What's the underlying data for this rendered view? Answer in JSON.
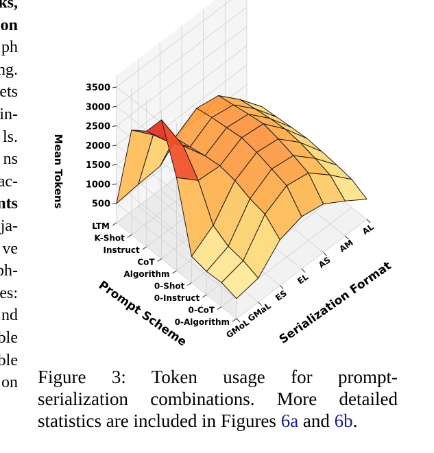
{
  "left_column_fragments": [
    {
      "text": "ks,",
      "bold": true
    },
    {
      "text": "on",
      "bold": true
    },
    {
      "text": "ph",
      "bold": false
    },
    {
      "text": "ng.",
      "bold": false
    },
    {
      "text": "ets",
      "bold": false
    },
    {
      "text": "in-",
      "bold": false
    },
    {
      "text": "ls.",
      "bold": false
    },
    {
      "text": "ns",
      "bold": false
    },
    {
      "text": "ac-",
      "bold": false
    },
    {
      "text": "nts",
      "bold": true
    },
    {
      "text": "ja-",
      "bold": false
    },
    {
      "text": "ve",
      "bold": false
    },
    {
      "text": "ph-",
      "bold": false
    },
    {
      "text": "es:",
      "bold": false
    },
    {
      "text": "nd",
      "bold": false
    },
    {
      "text": "ble",
      "bold": false
    },
    {
      "text": "ble",
      "bold": false
    },
    {
      "text": "on",
      "bold": false
    }
  ],
  "caption": {
    "line1": "Figure 3:  Token usage for prompt-",
    "line2": "serialization combinations. More detailed",
    "line3_pre": "statistics are included in Figures ",
    "ref1": "6a",
    "mid": " and ",
    "ref2": "6b",
    "end": "."
  },
  "chart_data": {
    "type": "surface3d",
    "zlabel": "Mean Tokens",
    "xlabel": "Serialization Format",
    "ylabel": "Prompt Scheme",
    "z_ticks": [
      "500",
      "1000",
      "1500",
      "2000",
      "2500",
      "3000",
      "3500"
    ],
    "zlim": [
      0,
      3800
    ],
    "serialization_formats": [
      "GMoL",
      "GMaL",
      "ES",
      "EL",
      "AS",
      "AM",
      "AL"
    ],
    "prompt_schemes": [
      "0-Algorithm",
      "0-CoT",
      "0-Instruct",
      "0-Shot",
      "Algorithm",
      "CoT",
      "Instruct",
      "K-Shot",
      "LTM"
    ],
    "values_note": "Mean tokens; rows = prompt schemes, columns = serialization formats (estimated from surface).",
    "values": [
      [
        520,
        620,
        1180,
        1350,
        1250,
        900,
        520
      ],
      [
        620,
        760,
        1530,
        1840,
        1740,
        1260,
        720
      ],
      [
        600,
        820,
        1620,
        1960,
        1880,
        1380,
        780
      ],
      [
        680,
        1050,
        1780,
        2080,
        2000,
        1480,
        820
      ],
      [
        2400,
        1900,
        1850,
        2150,
        2080,
        1520,
        850
      ],
      [
        3580,
        2480,
        1800,
        2100,
        2020,
        1480,
        820
      ],
      [
        2980,
        2280,
        1720,
        2050,
        1950,
        1420,
        780
      ],
      [
        2700,
        2150,
        1650,
        1980,
        1880,
        1350,
        740
      ],
      [
        500,
        560,
        600,
        1100,
        1060,
        860,
        520
      ]
    ],
    "colormap": "YlOrRd"
  }
}
